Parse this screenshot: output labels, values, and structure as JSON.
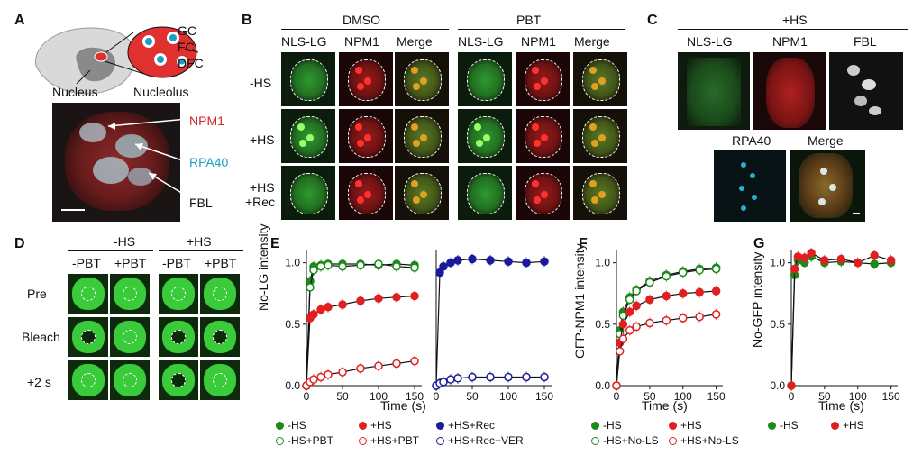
{
  "panelA": {
    "letter": "A",
    "gc": "GC",
    "fc": "FC",
    "dfc": "DFC",
    "nucleus": "Nucleus",
    "nucleolus": "Nucleolus",
    "npm1": "NPM1",
    "rpa40": "RPA40",
    "fbl": "FBL",
    "colors": {
      "gc": "#e03030",
      "fc": "#1aa0c8",
      "dfc": "#111111"
    }
  },
  "panelB": {
    "letter": "B",
    "dmso": "DMSO",
    "pbt": "PBT",
    "col_headers": [
      "NLS-LG",
      "NPM1",
      "Merge",
      "NLS-LG",
      "NPM1",
      "Merge"
    ],
    "rows": [
      "-HS",
      "+HS",
      "+HS",
      "+Rec"
    ]
  },
  "panelC": {
    "letter": "C",
    "title": "+HS",
    "top_headers": [
      "NLS-LG",
      "NPM1",
      "FBL"
    ],
    "bottom_headers": [
      "RPA40",
      "Merge"
    ]
  },
  "panelD": {
    "letter": "D",
    "group1": "-HS",
    "group2": "+HS",
    "col_headers": [
      "-PBT",
      "+PBT",
      "-PBT",
      "+PBT"
    ],
    "rows": [
      "Pre",
      "Bleach",
      "+2 s"
    ]
  },
  "panelE": {
    "letter": "E",
    "ylabel": "No-LG intensity",
    "xlabel": "Time (s)"
  },
  "panelF": {
    "letter": "F",
    "ylabel": "GFP-NPM1 intensity",
    "xlabel": "Time (s)"
  },
  "panelG": {
    "letter": "G",
    "ylabel": "No-GFP  intensity",
    "xlabel": "Time (s)"
  },
  "legendE": [
    "-HS",
    "+HS",
    "+HS+Rec",
    "-HS+PBT",
    "+HS+PBT",
    "+HS+Rec+VER"
  ],
  "legendF": [
    "-HS",
    "+HS",
    "-HS+No-LS",
    "+HS+No-LS"
  ],
  "legendG": [
    "-HS",
    "+HS"
  ],
  "chart_data": [
    {
      "type": "scatter",
      "panel": "E-left",
      "xlim": [
        0,
        160
      ],
      "ylim": [
        0,
        1.1
      ],
      "xticks": [
        0,
        50,
        100,
        150
      ],
      "yticks": [
        0.0,
        0.5,
        1.0
      ],
      "series": [
        {
          "name": "-HS",
          "color": "#1a8a1a",
          "filled": true,
          "x": [
            0,
            5,
            10,
            20,
            30,
            50,
            75,
            100,
            125,
            150
          ],
          "y": [
            0.0,
            0.85,
            0.97,
            0.98,
            0.99,
            0.99,
            0.99,
            0.98,
            0.99,
            0.98
          ]
        },
        {
          "name": "-HS+PBT",
          "color": "#1a8a1a",
          "filled": false,
          "x": [
            0,
            5,
            10,
            20,
            30,
            50,
            75,
            100,
            125,
            150
          ],
          "y": [
            0.0,
            0.8,
            0.94,
            0.97,
            0.98,
            0.97,
            0.98,
            0.99,
            0.97,
            0.96
          ]
        },
        {
          "name": "+HS",
          "color": "#e02020",
          "filled": true,
          "x": [
            0,
            5,
            10,
            20,
            30,
            50,
            75,
            100,
            125,
            150
          ],
          "y": [
            0.0,
            0.55,
            0.58,
            0.62,
            0.64,
            0.66,
            0.69,
            0.71,
            0.72,
            0.73
          ]
        },
        {
          "name": "+HS+PBT",
          "color": "#e02020",
          "filled": false,
          "x": [
            0,
            5,
            10,
            20,
            30,
            50,
            75,
            100,
            125,
            150
          ],
          "y": [
            0.0,
            0.03,
            0.05,
            0.07,
            0.09,
            0.11,
            0.14,
            0.16,
            0.18,
            0.2
          ]
        }
      ]
    },
    {
      "type": "scatter",
      "panel": "E-right",
      "xlim": [
        0,
        160
      ],
      "ylim": [
        0,
        1.1
      ],
      "xticks": [
        0,
        50,
        100,
        150
      ],
      "series": [
        {
          "name": "+HS+Rec",
          "color": "#1a1a9a",
          "filled": true,
          "x": [
            0,
            5,
            10,
            20,
            30,
            50,
            75,
            100,
            125,
            150
          ],
          "y": [
            0.0,
            0.92,
            0.97,
            1.0,
            1.02,
            1.03,
            1.02,
            1.01,
            1.0,
            1.01
          ]
        },
        {
          "name": "+HS+Rec+VER",
          "color": "#1a1a9a",
          "filled": false,
          "x": [
            0,
            5,
            10,
            20,
            30,
            50,
            75,
            100,
            125,
            150
          ],
          "y": [
            0.0,
            0.02,
            0.03,
            0.05,
            0.06,
            0.07,
            0.07,
            0.07,
            0.07,
            0.07
          ]
        }
      ]
    },
    {
      "type": "scatter",
      "panel": "F",
      "xlim": [
        0,
        160
      ],
      "ylim": [
        0,
        1.1
      ],
      "xticks": [
        0,
        50,
        100,
        150
      ],
      "yticks": [
        0.0,
        0.5,
        1.0
      ],
      "series": [
        {
          "name": "-HS",
          "color": "#1a8a1a",
          "filled": true,
          "x": [
            0,
            5,
            10,
            20,
            30,
            50,
            75,
            100,
            125,
            150
          ],
          "y": [
            0.0,
            0.45,
            0.6,
            0.72,
            0.78,
            0.85,
            0.9,
            0.93,
            0.95,
            0.96
          ]
        },
        {
          "name": "-HS+No-LS",
          "color": "#1a8a1a",
          "filled": false,
          "x": [
            0,
            5,
            10,
            20,
            30,
            50,
            75,
            100,
            125,
            150
          ],
          "y": [
            0.0,
            0.42,
            0.57,
            0.7,
            0.77,
            0.84,
            0.89,
            0.92,
            0.94,
            0.95
          ]
        },
        {
          "name": "+HS",
          "color": "#e02020",
          "filled": true,
          "x": [
            0,
            5,
            10,
            20,
            30,
            50,
            75,
            100,
            125,
            150
          ],
          "y": [
            0.0,
            0.35,
            0.5,
            0.6,
            0.65,
            0.7,
            0.73,
            0.75,
            0.76,
            0.77
          ]
        },
        {
          "name": "+HS+No-LS",
          "color": "#e02020",
          "filled": false,
          "x": [
            0,
            5,
            10,
            20,
            30,
            50,
            75,
            100,
            125,
            150
          ],
          "y": [
            0.0,
            0.28,
            0.38,
            0.45,
            0.48,
            0.51,
            0.53,
            0.55,
            0.56,
            0.58
          ]
        }
      ]
    },
    {
      "type": "scatter",
      "panel": "G",
      "xlim": [
        0,
        160
      ],
      "ylim": [
        0,
        1.1
      ],
      "xticks": [
        0,
        50,
        100,
        150
      ],
      "yticks": [
        0.0,
        0.5,
        1.0
      ],
      "series": [
        {
          "name": "-HS",
          "color": "#1a8a1a",
          "filled": true,
          "x": [
            0,
            5,
            10,
            20,
            30,
            50,
            75,
            100,
            125,
            150
          ],
          "y": [
            0.0,
            0.9,
            1.02,
            1.0,
            1.05,
            1.0,
            1.01,
            1.0,
            0.99,
            1.0
          ]
        },
        {
          "name": "+HS",
          "color": "#e02020",
          "filled": true,
          "x": [
            0,
            5,
            10,
            20,
            30,
            50,
            75,
            100,
            125,
            150
          ],
          "y": [
            0.0,
            0.95,
            1.05,
            1.04,
            1.08,
            1.02,
            1.03,
            1.0,
            1.06,
            1.02
          ]
        }
      ]
    }
  ]
}
